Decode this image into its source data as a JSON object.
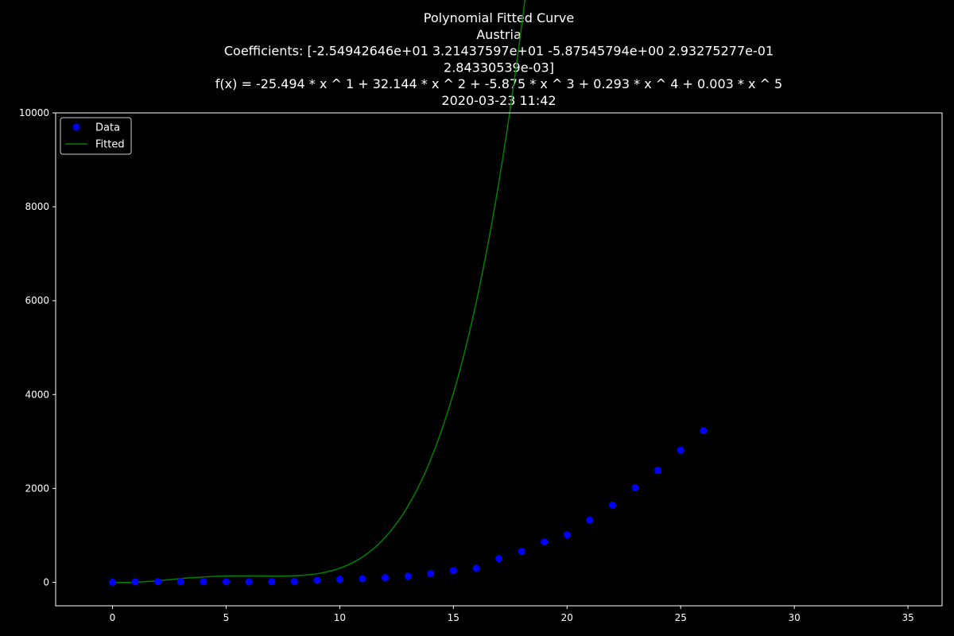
{
  "chart_data": {
    "type": "scatter",
    "title_lines": [
      "Polynomial Fitted Curve",
      "Austria",
      "Coefficients: [-2.54942646e+01  3.21437597e+01 -5.87545794e+00  2.93275277e-01",
      "2.84330539e-03]",
      "f(x) = -25.494 * x ^ 1 + 32.144 * x ^ 2 + -5.875 * x ^ 3 + 0.293 * x ^ 4 + 0.003 * x ^ 5",
      "2020-03-23 11:42"
    ],
    "xlabel": "",
    "ylabel": "",
    "xlim": [
      -2.5,
      36.5
    ],
    "ylim": [
      -500,
      10000
    ],
    "xticks": [
      0,
      5,
      10,
      15,
      20,
      25,
      30,
      35
    ],
    "yticks": [
      0,
      2000,
      4000,
      6000,
      8000,
      10000
    ],
    "grid": false,
    "legend_position": "upper left",
    "series": [
      {
        "name": "Data",
        "kind": "markers",
        "color": "#0000ff",
        "x": [
          0,
          1,
          2,
          3,
          4,
          5,
          6,
          7,
          8,
          9,
          10,
          11,
          12,
          13,
          14,
          15,
          16,
          17,
          18,
          19,
          20,
          21,
          22,
          23,
          24,
          25,
          26
        ],
        "y": [
          2,
          10,
          18,
          14,
          14,
          12,
          10,
          15,
          20,
          40,
          65,
          75,
          100,
          130,
          185,
          250,
          300,
          505,
          655,
          860,
          1010,
          1325,
          1645,
          2015,
          2385,
          2815,
          3230
        ]
      },
      {
        "name": "Fitted",
        "kind": "line",
        "color": "#008000",
        "coefficients": [
          0,
          -25.4942646,
          32.1437597,
          -5.87545794,
          0.293275277,
          0.00284330539
        ],
        "x_range": [
          0,
          34
        ]
      }
    ]
  }
}
